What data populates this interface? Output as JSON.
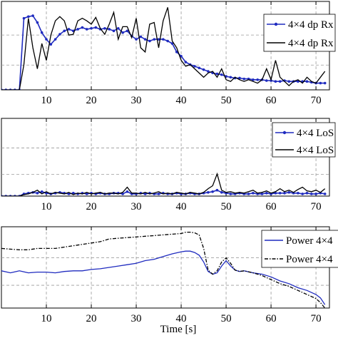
{
  "chart_data": [
    {
      "type": "line",
      "title": "",
      "xlabel": "",
      "ylabel": "",
      "xlim": [
        0,
        73
      ],
      "xticks": [
        "10",
        "20",
        "30",
        "40",
        "50",
        "60",
        "70"
      ],
      "grid": true,
      "legend_position": "top-right",
      "series": [
        {
          "name": "4×4 dp Rx",
          "color": "#1f2bbf",
          "style": "solid-with-dots",
          "x": [
            0,
            1,
            2,
            3,
            4,
            5,
            6,
            7,
            8,
            9,
            10,
            11,
            12,
            13,
            14,
            15,
            16,
            17,
            18,
            19,
            20,
            21,
            22,
            23,
            24,
            25,
            26,
            27,
            28,
            29,
            30,
            31,
            32,
            33,
            34,
            35,
            36,
            37,
            38,
            39,
            40,
            41,
            42,
            43,
            44,
            45,
            46,
            47,
            48,
            49,
            50,
            51,
            52,
            53,
            54,
            55,
            56,
            57,
            58,
            59,
            60,
            61,
            62,
            63,
            64,
            65,
            66,
            67,
            68,
            69,
            70,
            71,
            72
          ],
          "y": [
            0,
            0,
            0,
            0,
            0,
            0.85,
            0.87,
            0.88,
            0.8,
            0.68,
            0.6,
            0.54,
            0.6,
            0.66,
            0.7,
            0.72,
            0.7,
            0.72,
            0.74,
            0.72,
            0.73,
            0.74,
            0.72,
            0.73,
            0.72,
            0.7,
            0.73,
            0.68,
            0.7,
            0.64,
            0.6,
            0.63,
            0.6,
            0.58,
            0.6,
            0.6,
            0.6,
            0.58,
            0.55,
            0.45,
            0.4,
            0.33,
            0.3,
            0.28,
            0.26,
            0.24,
            0.22,
            0.2,
            0.19,
            0.18,
            0.16,
            0.15,
            0.14,
            0.14,
            0.13,
            0.13,
            0.12,
            0.12,
            0.12,
            0.11,
            0.11,
            0.1,
            0.1,
            0.11,
            0.1,
            0.1,
            0.1,
            0.1,
            0.1,
            0.09,
            0.08,
            0.08,
            0.08
          ]
        },
        {
          "name": "4×4 dp Rx",
          "color": "#000000",
          "style": "solid",
          "x": [
            0,
            1,
            2,
            3,
            4,
            5,
            6,
            7,
            8,
            9,
            10,
            11,
            12,
            13,
            14,
            15,
            16,
            17,
            18,
            19,
            20,
            21,
            22,
            23,
            24,
            25,
            26,
            27,
            28,
            29,
            30,
            31,
            32,
            33,
            34,
            35,
            36,
            37,
            38,
            39,
            40,
            41,
            42,
            43,
            44,
            45,
            46,
            47,
            48,
            49,
            50,
            51,
            52,
            53,
            54,
            55,
            56,
            57,
            58,
            59,
            60,
            61,
            62,
            63,
            64,
            65,
            66,
            67,
            68,
            69,
            70,
            71,
            72
          ],
          "y": [
            0,
            0,
            0,
            0,
            0,
            0.3,
            0.85,
            0.5,
            0.25,
            0.55,
            0.35,
            0.65,
            0.82,
            0.87,
            0.82,
            0.65,
            0.66,
            0.82,
            0.85,
            0.82,
            0.78,
            0.86,
            0.73,
            0.66,
            0.78,
            0.92,
            0.6,
            0.75,
            0.75,
            0.62,
            0.85,
            0.5,
            0.45,
            0.78,
            0.8,
            0.5,
            0.82,
            0.98,
            0.58,
            0.5,
            0.35,
            0.28,
            0.3,
            0.25,
            0.2,
            0.15,
            0.2,
            0.22,
            0.15,
            0.25,
            0.12,
            0.1,
            0.15,
            0.12,
            0.1,
            0.12,
            0.1,
            0.08,
            0.12,
            0.25,
            0.12,
            0.35,
            0.15,
            0.1,
            0.05,
            0.1,
            0.12,
            0.08,
            0.15,
            0.1,
            0.08,
            0.15,
            0.22
          ]
        }
      ]
    },
    {
      "type": "line",
      "title": "",
      "xlabel": "",
      "ylabel": "",
      "xlim": [
        0,
        73
      ],
      "xticks": [
        "10",
        "20",
        "30",
        "40",
        "50",
        "60",
        "70"
      ],
      "grid": true,
      "legend_position": "top-right",
      "series": [
        {
          "name": "4×4 LoS",
          "color": "#1f2bbf",
          "style": "solid-with-dots",
          "x": [
            0,
            1,
            2,
            3,
            4,
            5,
            6,
            7,
            8,
            9,
            10,
            11,
            12,
            13,
            14,
            15,
            16,
            17,
            18,
            19,
            20,
            21,
            22,
            23,
            24,
            25,
            26,
            27,
            28,
            29,
            30,
            31,
            32,
            33,
            34,
            35,
            36,
            37,
            38,
            39,
            40,
            41,
            42,
            43,
            44,
            45,
            46,
            47,
            48,
            49,
            50,
            51,
            52,
            53,
            54,
            55,
            56,
            57,
            58,
            59,
            60,
            61,
            62,
            63,
            64,
            65,
            66,
            67,
            68,
            69,
            70,
            71,
            72
          ],
          "y": [
            0,
            0,
            0,
            0,
            0,
            0.03,
            0.04,
            0.05,
            0.04,
            0.06,
            0.04,
            0.03,
            0.04,
            0.05,
            0.04,
            0.03,
            0.04,
            0.03,
            0.04,
            0.03,
            0.04,
            0.03,
            0.04,
            0.03,
            0.03,
            0.04,
            0.04,
            0.03,
            0.06,
            0.03,
            0.03,
            0.04,
            0.03,
            0.04,
            0.03,
            0.03,
            0.04,
            0.03,
            0.03,
            0.04,
            0.03,
            0.03,
            0.04,
            0.03,
            0.03,
            0.04,
            0.05,
            0.06,
            0.08,
            0.05,
            0.04,
            0.03,
            0.03,
            0.04,
            0.03,
            0.03,
            0.04,
            0.03,
            0.03,
            0.04,
            0.03,
            0.04,
            0.04,
            0.04,
            0.05,
            0.04,
            0.04,
            0.03,
            0.04,
            0.03,
            0.03,
            0.04,
            0.03
          ]
        },
        {
          "name": "4×4 LoS",
          "color": "#000000",
          "style": "solid",
          "x": [
            0,
            1,
            2,
            3,
            4,
            5,
            6,
            7,
            8,
            9,
            10,
            11,
            12,
            13,
            14,
            15,
            16,
            17,
            18,
            19,
            20,
            21,
            22,
            23,
            24,
            25,
            26,
            27,
            28,
            29,
            30,
            31,
            32,
            33,
            34,
            35,
            36,
            37,
            38,
            39,
            40,
            41,
            42,
            43,
            44,
            45,
            46,
            47,
            48,
            49,
            50,
            51,
            52,
            53,
            54,
            55,
            56,
            57,
            58,
            59,
            60,
            61,
            62,
            63,
            64,
            65,
            66,
            67,
            68,
            69,
            70,
            71,
            72
          ],
          "y": [
            0,
            0,
            0,
            0,
            0,
            0.02,
            0.03,
            0.05,
            0.08,
            0.03,
            0.06,
            0.03,
            0.05,
            0.04,
            0.03,
            0.05,
            0.02,
            0.04,
            0.03,
            0.05,
            0.03,
            0.04,
            0.05,
            0.03,
            0.04,
            0.04,
            0.03,
            0.05,
            0.12,
            0.04,
            0.04,
            0.03,
            0.05,
            0.03,
            0.04,
            0.06,
            0.03,
            0.04,
            0.03,
            0.05,
            0.04,
            0.03,
            0.05,
            0.04,
            0.03,
            0.05,
            0.1,
            0.14,
            0.3,
            0.08,
            0.05,
            0.06,
            0.04,
            0.05,
            0.04,
            0.06,
            0.08,
            0.04,
            0.05,
            0.07,
            0.04,
            0.06,
            0.1,
            0.06,
            0.08,
            0.05,
            0.09,
            0.12,
            0.07,
            0.06,
            0.08,
            0.05,
            0.1
          ]
        }
      ]
    },
    {
      "type": "line",
      "title": "",
      "xlabel": "Time [s]",
      "ylabel": "",
      "xlim": [
        0,
        73
      ],
      "xticks": [
        "10",
        "20",
        "30",
        "40",
        "50",
        "60",
        "70"
      ],
      "grid": true,
      "legend_position": "top-right",
      "series": [
        {
          "name": "Power 4×4",
          "color": "#1f2bbf",
          "style": "solid",
          "x": [
            0,
            2,
            4,
            6,
            8,
            10,
            12,
            14,
            16,
            18,
            20,
            22,
            24,
            26,
            28,
            30,
            32,
            34,
            36,
            38,
            40,
            41,
            42,
            43,
            44,
            45,
            46,
            47,
            48,
            49,
            50,
            51,
            52,
            53,
            54,
            56,
            58,
            60,
            62,
            64,
            66,
            68,
            70,
            71,
            72
          ],
          "y": [
            0.55,
            0.52,
            0.55,
            0.52,
            0.53,
            0.53,
            0.52,
            0.54,
            0.55,
            0.55,
            0.57,
            0.58,
            0.6,
            0.62,
            0.64,
            0.66,
            0.7,
            0.72,
            0.76,
            0.8,
            0.83,
            0.84,
            0.84,
            0.82,
            0.78,
            0.68,
            0.54,
            0.5,
            0.52,
            0.62,
            0.7,
            0.62,
            0.56,
            0.54,
            0.55,
            0.52,
            0.5,
            0.46,
            0.4,
            0.36,
            0.3,
            0.26,
            0.2,
            0.15,
            0.05
          ]
        },
        {
          "name": "Power 4×4",
          "color": "#000000",
          "style": "dash-dot",
          "x": [
            0,
            2,
            4,
            6,
            8,
            10,
            12,
            14,
            16,
            18,
            20,
            22,
            24,
            26,
            28,
            30,
            32,
            34,
            36,
            38,
            40,
            41,
            42,
            43,
            44,
            45,
            46,
            47,
            48,
            49,
            50,
            51,
            52,
            53,
            54,
            56,
            58,
            60,
            62,
            64,
            66,
            68,
            70,
            71,
            72
          ],
          "y": [
            0.88,
            0.87,
            0.86,
            0.86,
            0.88,
            0.88,
            0.88,
            0.9,
            0.92,
            0.94,
            0.96,
            0.98,
            1.02,
            1.03,
            1.04,
            1.05,
            1.06,
            1.07,
            1.08,
            1.09,
            1.1,
            1.12,
            1.12,
            1.11,
            1.08,
            0.88,
            0.56,
            0.5,
            0.55,
            0.68,
            0.74,
            0.66,
            0.56,
            0.54,
            0.55,
            0.52,
            0.48,
            0.42,
            0.36,
            0.32,
            0.26,
            0.2,
            0.14,
            0.08,
            0.0
          ]
        }
      ]
    }
  ]
}
